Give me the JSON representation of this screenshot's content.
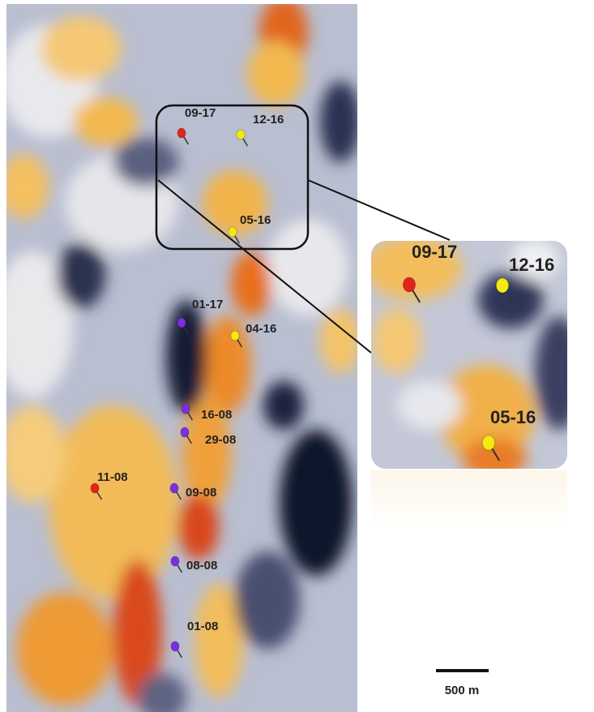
{
  "map": {
    "pins": [
      {
        "label": "09-17"
      },
      {
        "label": "12-16"
      },
      {
        "label": "05-16"
      },
      {
        "label": "01-17"
      },
      {
        "label": "04-16"
      },
      {
        "label": "16-08"
      },
      {
        "label": "29-08"
      },
      {
        "label": "11-08"
      },
      {
        "label": "09-08"
      },
      {
        "label": "08-08"
      },
      {
        "label": "01-08"
      }
    ],
    "inset": {
      "pins": [
        {
          "label": "09-17"
        },
        {
          "label": "12-16"
        },
        {
          "label": "05-16"
        }
      ]
    },
    "scale_bar": {
      "label": "500 m"
    }
  }
}
